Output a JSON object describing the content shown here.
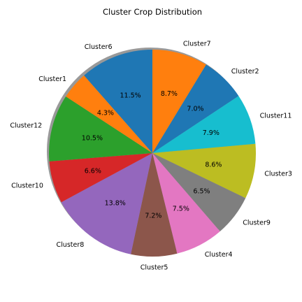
{
  "chart_data": {
    "type": "pie",
    "title": "Cluster Crop Distribution",
    "start_angle_deg": 90,
    "direction": "clockwise",
    "shadow": true,
    "slices": [
      {
        "label": "Cluster7",
        "value": 8.7,
        "pct_label": "8.7%",
        "color": "#ff7f0e"
      },
      {
        "label": "Cluster2",
        "value": 7.0,
        "pct_label": "7.0%",
        "color": "#1f77b4"
      },
      {
        "label": "Cluster11",
        "value": 7.9,
        "pct_label": "7.9%",
        "color": "#17becf"
      },
      {
        "label": "Cluster3",
        "value": 8.6,
        "pct_label": "8.6%",
        "color": "#bcbd22"
      },
      {
        "label": "Cluster9",
        "value": 6.5,
        "pct_label": "6.5%",
        "color": "#7f7f7f"
      },
      {
        "label": "Cluster4",
        "value": 7.5,
        "pct_label": "7.5%",
        "color": "#e377c2"
      },
      {
        "label": "Cluster5",
        "value": 7.2,
        "pct_label": "7.2%",
        "color": "#8c564b"
      },
      {
        "label": "Cluster8",
        "value": 13.8,
        "pct_label": "13.8%",
        "color": "#9467bd"
      },
      {
        "label": "Cluster10",
        "value": 6.6,
        "pct_label": "6.6%",
        "color": "#d62728"
      },
      {
        "label": "Cluster12",
        "value": 10.5,
        "pct_label": "10.5%",
        "color": "#2ca02c"
      },
      {
        "label": "Cluster1",
        "value": 4.3,
        "pct_label": "4.3%",
        "color": "#ff7f0e"
      },
      {
        "label": "Cluster6",
        "value": 11.5,
        "pct_label": "11.5%",
        "color": "#1f77b4"
      }
    ]
  }
}
